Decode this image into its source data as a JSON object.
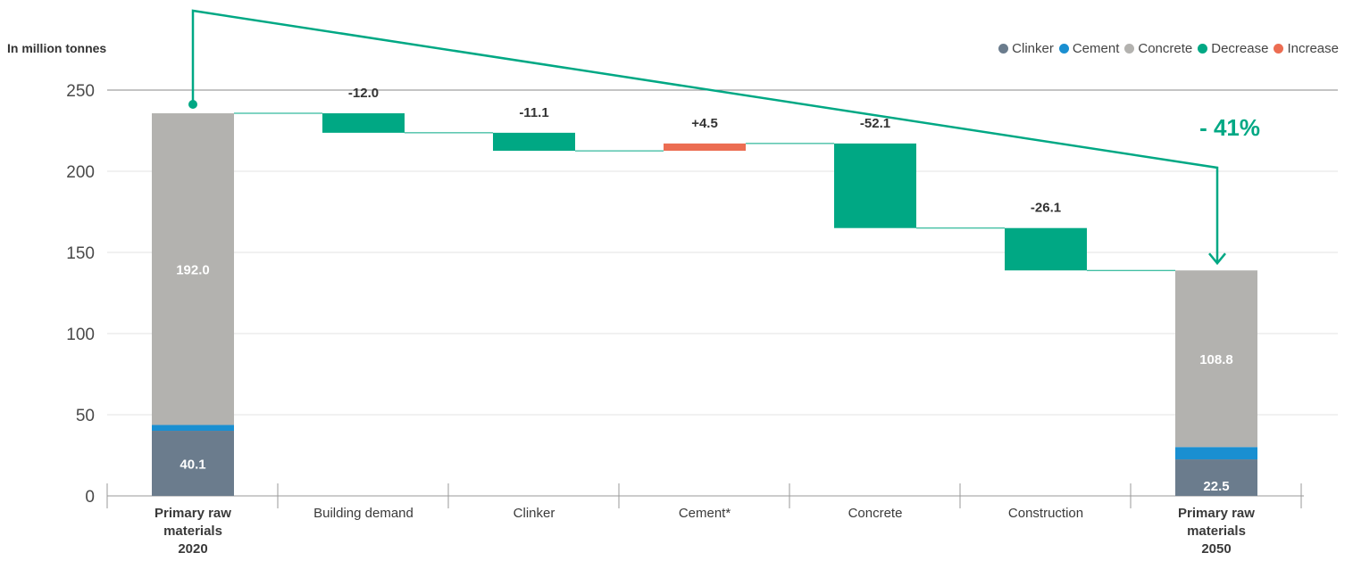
{
  "unit_label": "In million tonnes",
  "legend": [
    {
      "label": "Clinker",
      "color": "#6b7c8d"
    },
    {
      "label": "Cement",
      "color": "#1a8fd1"
    },
    {
      "label": "Concrete",
      "color": "#b3b2af"
    },
    {
      "label": "Decrease",
      "color": "#00a884"
    },
    {
      "label": "Increase",
      "color": "#ec6d52"
    }
  ],
  "chart_data": {
    "type": "bar",
    "subtype": "waterfall",
    "title": "",
    "xlabel": "",
    "ylabel": "In million tonnes",
    "ylim": [
      0,
      250
    ],
    "yticks": [
      0,
      50,
      100,
      150,
      200,
      250
    ],
    "grid": true,
    "legend_position": "top-right",
    "categories": [
      [
        "Primary raw",
        "materials",
        "2020"
      ],
      [
        "Building demand"
      ],
      [
        "Clinker"
      ],
      [
        "Cement*"
      ],
      [
        "Concrete"
      ],
      [
        "Construction"
      ],
      [
        "Primary raw",
        "materials",
        "2050"
      ]
    ],
    "stacked_totals": [
      {
        "category_index": 0,
        "segments": [
          {
            "series": "Clinker",
            "value": 40.1,
            "label": "40.1"
          },
          {
            "series": "Cement",
            "value": 3.6,
            "label": "3.6"
          },
          {
            "series": "Concrete",
            "value": 192.0,
            "label": "192.0"
          }
        ]
      },
      {
        "category_index": 6,
        "segments": [
          {
            "series": "Clinker",
            "value": 22.5,
            "label": "22.5"
          },
          {
            "series": "Cement",
            "value": 7.6,
            "label": "7.6"
          },
          {
            "series": "Concrete",
            "value": 108.8,
            "label": "108.8"
          }
        ]
      }
    ],
    "changes": [
      {
        "category_index": 1,
        "value": -12.0,
        "label": "-12.0"
      },
      {
        "category_index": 2,
        "value": -11.1,
        "label": "-11.1"
      },
      {
        "category_index": 3,
        "value": 4.5,
        "label": "+4.5"
      },
      {
        "category_index": 4,
        "value": -52.1,
        "label": "-52.1"
      },
      {
        "category_index": 5,
        "value": -26.1,
        "label": "-26.1"
      }
    ],
    "annotation": {
      "text": "- 41%",
      "color": "#00a884"
    }
  }
}
